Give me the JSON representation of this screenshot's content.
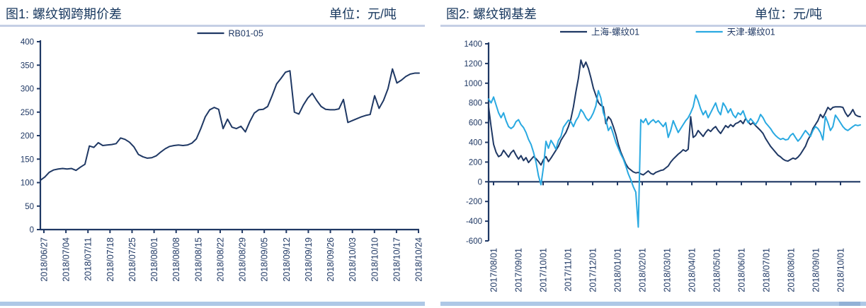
{
  "colors": {
    "navy": "#1F3864",
    "cyan": "#29A9E1",
    "header_text": "#17375E",
    "divider": "#C5CFE5",
    "bottom_strip": "#AEC8E6"
  },
  "panels": [
    {
      "title": "图1: 螺纹钢跨期价差",
      "unit_label": "单位：元/吨"
    },
    {
      "title": "图2: 螺纹钢基差",
      "unit_label": "单位：元/吨"
    }
  ],
  "chart_data": [
    {
      "type": "line",
      "title": "图1: 螺纹钢跨期价差",
      "unit": "元/吨",
      "grid": false,
      "legend_position": "top-center",
      "ylim": [
        0,
        400
      ],
      "y_ticks": [
        0,
        50,
        100,
        150,
        200,
        250,
        300,
        350,
        400
      ],
      "x_tick_labels": [
        "2018/06/27",
        "2018/07/04",
        "2018/07/11",
        "2018/07/18",
        "2018/07/25",
        "2018/08/01",
        "2018/08/08",
        "2018/08/15",
        "2018/08/22",
        "2018/08/29",
        "2018/09/05",
        "2018/09/12",
        "2018/09/19",
        "2018/09/26",
        "2018/10/03",
        "2018/10/10",
        "2018/10/17",
        "2018/10/24"
      ],
      "series": [
        {
          "name": "RB01-05",
          "color": "#1F3864",
          "values": [
            105,
            112,
            122,
            127,
            129,
            130,
            129,
            130,
            126,
            133,
            139,
            178,
            175,
            185,
            179,
            180,
            181,
            183,
            195,
            192,
            186,
            176,
            160,
            155,
            152,
            153,
            157,
            165,
            172,
            177,
            179,
            180,
            179,
            180,
            184,
            193,
            215,
            240,
            255,
            260,
            256,
            215,
            235,
            218,
            215,
            220,
            208,
            230,
            248,
            255,
            256,
            262,
            285,
            310,
            322,
            335,
            338,
            250,
            246,
            265,
            280,
            290,
            275,
            262,
            256,
            255,
            255,
            257,
            277,
            228,
            232,
            236,
            240,
            243,
            245,
            285,
            258,
            275,
            300,
            342,
            312,
            318,
            326,
            331,
            333,
            333
          ]
        }
      ]
    },
    {
      "type": "line",
      "title": "图2: 螺纹钢基差",
      "unit": "元/吨",
      "grid": false,
      "legend_position": "top-center",
      "ylim": [
        -600,
        1400
      ],
      "y_ticks": [
        -600,
        -400,
        -200,
        0,
        200,
        400,
        600,
        800,
        1000,
        1200,
        1400
      ],
      "x_tick_labels": [
        "2017/08/01",
        "2017/09/01",
        "2017/10/01",
        "2017/11/01",
        "2017/12/01",
        "2018/01/01",
        "2018/02/01",
        "2018/03/01",
        "2018/04/01",
        "2018/05/01",
        "2018/06/01",
        "2018/07/01",
        "2018/08/01",
        "2018/09/01",
        "2018/10/01"
      ],
      "series": [
        {
          "name": "上海-螺纹01",
          "color": "#1F3864",
          "values": [
            760,
            560,
            380,
            300,
            255,
            270,
            320,
            285,
            250,
            295,
            320,
            270,
            230,
            265,
            215,
            245,
            195,
            225,
            255,
            235,
            205,
            170,
            225,
            255,
            205,
            240,
            280,
            320,
            360,
            420,
            460,
            500,
            560,
            640,
            760,
            913,
            1050,
            1235,
            1160,
            1214,
            1150,
            1056,
            950,
            877,
            805,
            775,
            760,
            590,
            660,
            630,
            560,
            480,
            380,
            300,
            240,
            180,
            140,
            120,
            100,
            90,
            95,
            80,
            70,
            90,
            110,
            85,
            75,
            95,
            105,
            115,
            120,
            140,
            160,
            200,
            230,
            255,
            280,
            300,
            325,
            310,
            330,
            660,
            450,
            470,
            520,
            490,
            460,
            500,
            530,
            510,
            540,
            560,
            520,
            490,
            530,
            570,
            550,
            580,
            560,
            590,
            600,
            620,
            590,
            640,
            610,
            580,
            600,
            570,
            545,
            520,
            490,
            440,
            400,
            360,
            330,
            300,
            270,
            253,
            230,
            215,
            210,
            225,
            240,
            230,
            250,
            280,
            320,
            360,
            425,
            470,
            540,
            580,
            620,
            683,
            650,
            700,
            755,
            730,
            755,
            760,
            760,
            760,
            755,
            700,
            662,
            690,
            733,
            680,
            665,
            660
          ]
        },
        {
          "name": "天津-螺纹01",
          "color": "#29A9E1",
          "values": [
            840,
            800,
            860,
            780,
            700,
            650,
            700,
            620,
            560,
            540,
            560,
            610,
            630,
            580,
            550,
            500,
            430,
            380,
            300,
            200,
            60,
            -30,
            150,
            411,
            340,
            420,
            380,
            330,
            420,
            460,
            554,
            590,
            625,
            610,
            560,
            620,
            660,
            733,
            700,
            650,
            620,
            650,
            700,
            770,
            925,
            850,
            700,
            630,
            520,
            560,
            483,
            400,
            340,
            280,
            230,
            160,
            80,
            20,
            -50,
            -105,
            -460,
            630,
            600,
            640,
            580,
            610,
            630,
            600,
            620,
            590,
            560,
            600,
            450,
            520,
            620,
            560,
            500,
            540,
            580,
            620,
            650,
            700,
            760,
            880,
            820,
            740,
            680,
            720,
            650,
            700,
            750,
            800,
            720,
            680,
            800,
            760,
            700,
            740,
            680,
            650,
            700,
            680,
            720,
            650,
            600,
            640,
            610,
            580,
            620,
            683,
            650,
            600,
            570,
            540,
            500,
            470,
            447,
            430,
            440,
            425,
            430,
            470,
            490,
            450,
            412,
            440,
            480,
            520,
            490,
            460,
            520,
            560,
            540,
            500,
            425,
            662,
            600,
            520,
            560,
            676,
            640,
            600,
            560,
            533,
            520,
            540,
            560,
            577,
            570,
            577
          ]
        }
      ]
    }
  ]
}
